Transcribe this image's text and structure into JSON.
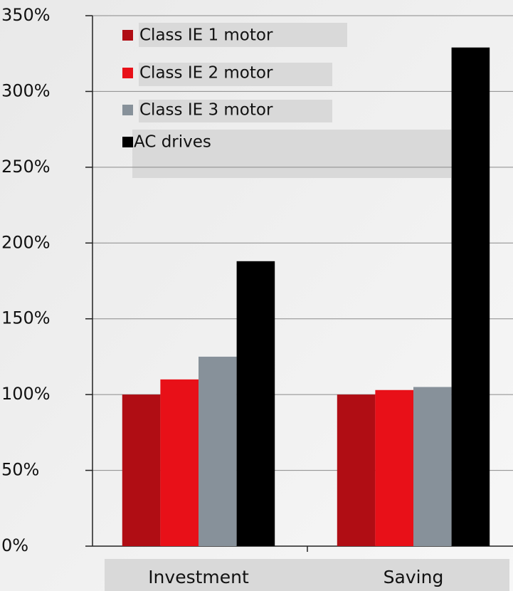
{
  "chart_data": {
    "type": "bar",
    "categories": [
      "Investment",
      "Saving"
    ],
    "series": [
      {
        "name": "Class IE 1 motor",
        "color": "#b00d14",
        "values": [
          100,
          100
        ]
      },
      {
        "name": "Class IE 2 motor",
        "color": "#e81018",
        "values": [
          110,
          103
        ]
      },
      {
        "name": "Class IE 3 motor",
        "color": "#87919a",
        "values": [
          125,
          105
        ]
      },
      {
        "name": "AC drives",
        "color": "#000000",
        "values": [
          188,
          329
        ]
      }
    ],
    "ylim": [
      0,
      350
    ],
    "yticks": [
      {
        "value": 0,
        "label": "0%"
      },
      {
        "value": 50,
        "label": "50%"
      },
      {
        "value": 100,
        "label": "100%"
      },
      {
        "value": 150,
        "label": "150%"
      },
      {
        "value": 200,
        "label": "200%"
      },
      {
        "value": 250,
        "label": "250%"
      },
      {
        "value": 300,
        "label": "300%"
      },
      {
        "value": 350,
        "label": "350%"
      }
    ],
    "grid": true,
    "legend": "top-left"
  }
}
